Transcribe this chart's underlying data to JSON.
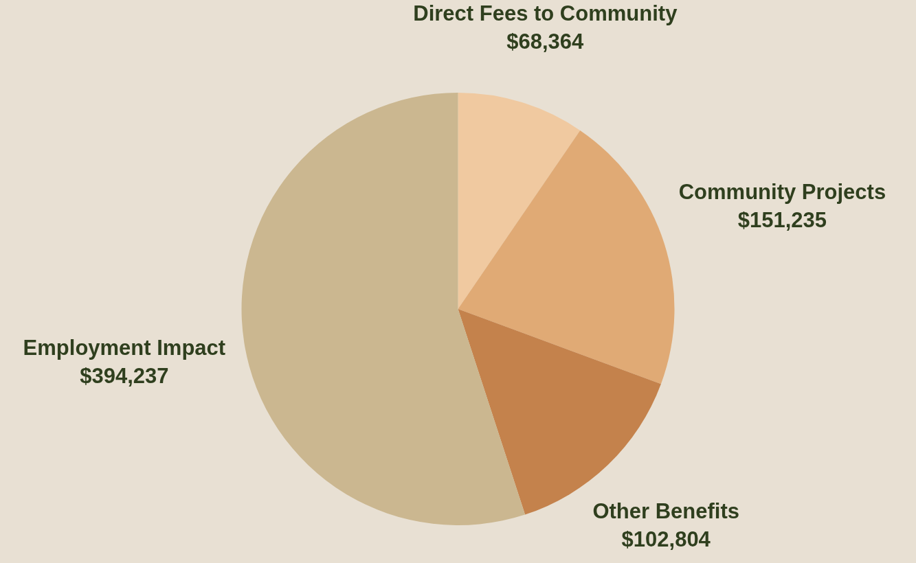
{
  "chart_data": {
    "type": "pie",
    "categories": [
      "Direct Fees to Community",
      "Community Projects",
      "Other Benefits",
      "Employment Impact"
    ],
    "values": [
      68364,
      151235,
      102804,
      394237
    ],
    "value_labels": [
      "$68,364",
      "$151,235",
      "$102,804",
      "$394,237"
    ],
    "colors": [
      "#f0c9a0",
      "#e0aa75",
      "#c4824c",
      "#cbb790"
    ],
    "legend": false
  }
}
